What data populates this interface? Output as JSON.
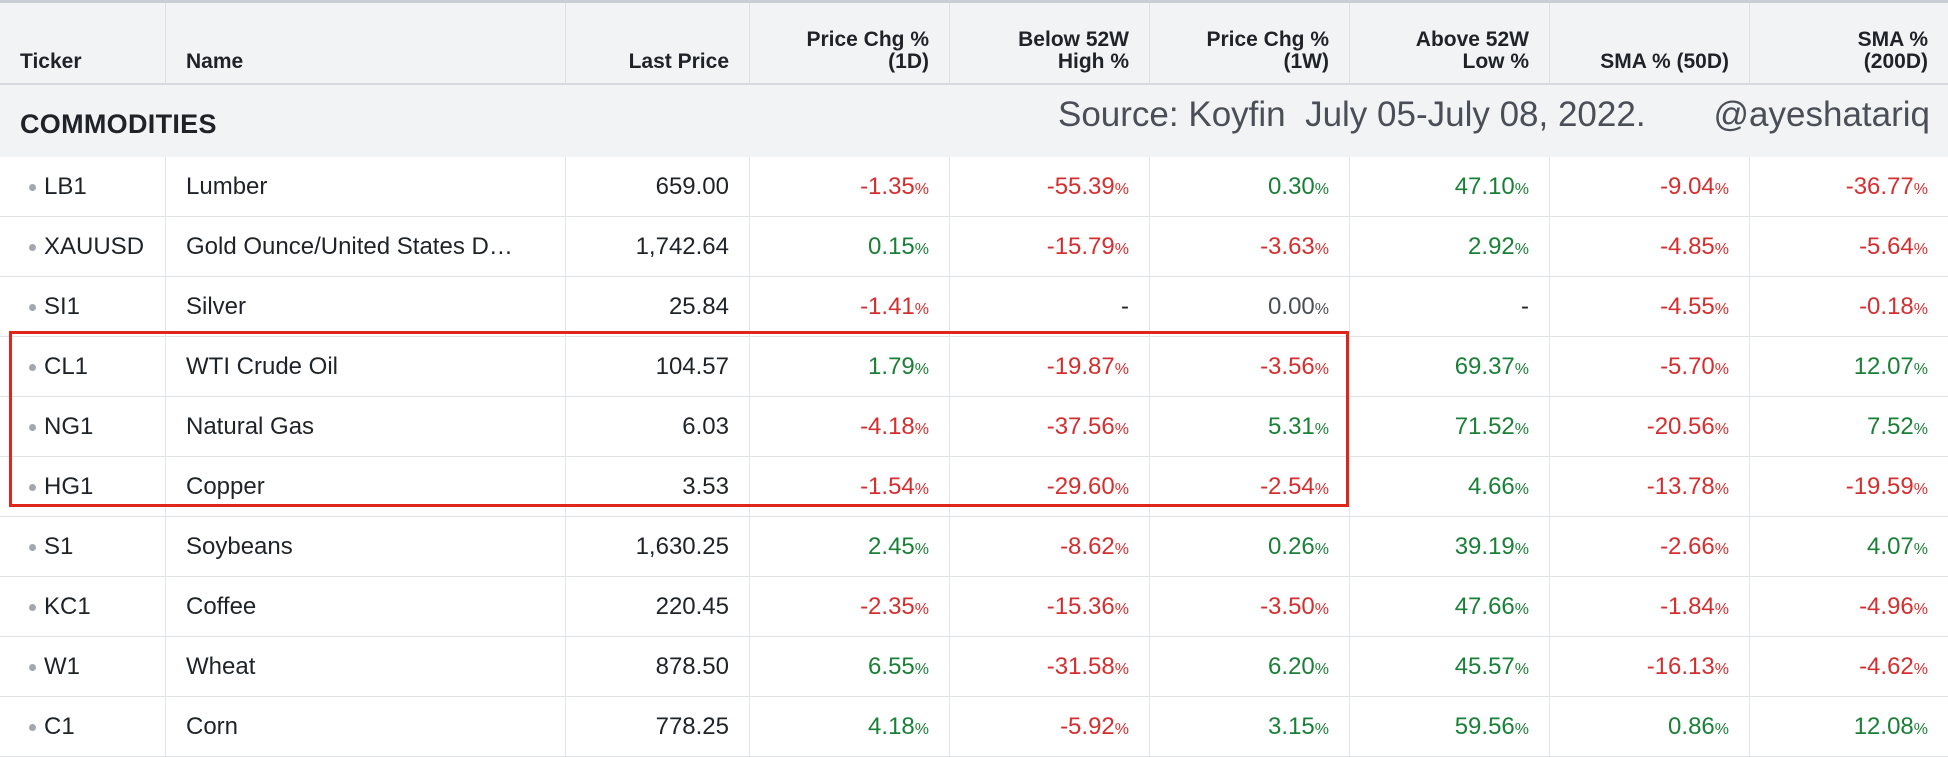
{
  "columns": [
    {
      "l1": "",
      "l2": "Ticker"
    },
    {
      "l1": "",
      "l2": "Name"
    },
    {
      "l1": "",
      "l2": "Last Price"
    },
    {
      "l1": "Price Chg %",
      "l2": "(1D)"
    },
    {
      "l1": "Below 52W",
      "l2": "High %"
    },
    {
      "l1": "Price Chg %",
      "l2": "(1W)"
    },
    {
      "l1": "Above 52W",
      "l2": "Low %"
    },
    {
      "l1": "",
      "l2": "SMA % (50D)"
    },
    {
      "l1": "SMA %",
      "l2": "(200D)"
    }
  ],
  "section": {
    "title": "COMMODITIES",
    "source_note": "Source: Koyfin  July 05-July 08, 2022.",
    "handle": "@ayeshatariq"
  },
  "colors": {
    "positive": "#1a7f37",
    "negative": "#d32f2f",
    "highlight_border": "#e0251b",
    "header_bg": "#f2f3f5"
  },
  "highlighted_tickers": [
    "CL1",
    "NG1",
    "HG1"
  ],
  "rows": [
    {
      "ticker": "LB1",
      "name": "Lumber",
      "price": "659.00",
      "values": [
        "-1.35",
        "-55.39",
        "0.30",
        "47.10",
        "-9.04",
        "-36.77"
      ]
    },
    {
      "ticker": "XAUUSD",
      "name": "Gold Ounce/United States D…",
      "price": "1,742.64",
      "values": [
        "0.15",
        "-15.79",
        "-3.63",
        "2.92",
        "-4.85",
        "-5.64"
      ]
    },
    {
      "ticker": "SI1",
      "name": "Silver",
      "price": "25.84",
      "values": [
        "-1.41",
        "-",
        "0.00",
        "-",
        "-4.55",
        "-0.18"
      ]
    },
    {
      "ticker": "CL1",
      "name": "WTI Crude Oil",
      "price": "104.57",
      "values": [
        "1.79",
        "-19.87",
        "-3.56",
        "69.37",
        "-5.70",
        "12.07"
      ]
    },
    {
      "ticker": "NG1",
      "name": "Natural Gas",
      "price": "6.03",
      "values": [
        "-4.18",
        "-37.56",
        "5.31",
        "71.52",
        "-20.56",
        "7.52"
      ]
    },
    {
      "ticker": "HG1",
      "name": "Copper",
      "price": "3.53",
      "values": [
        "-1.54",
        "-29.60",
        "-2.54",
        "4.66",
        "-13.78",
        "-19.59"
      ]
    },
    {
      "ticker": "S1",
      "name": "Soybeans",
      "price": "1,630.25",
      "values": [
        "2.45",
        "-8.62",
        "0.26",
        "39.19",
        "-2.66",
        "4.07"
      ]
    },
    {
      "ticker": "KC1",
      "name": "Coffee",
      "price": "220.45",
      "values": [
        "-2.35",
        "-15.36",
        "-3.50",
        "47.66",
        "-1.84",
        "-4.96"
      ]
    },
    {
      "ticker": "W1",
      "name": "Wheat",
      "price": "878.50",
      "values": [
        "6.55",
        "-31.58",
        "6.20",
        "45.57",
        "-16.13",
        "-4.62"
      ]
    },
    {
      "ticker": "C1",
      "name": "Corn",
      "price": "778.25",
      "values": [
        "4.18",
        "-5.92",
        "3.15",
        "59.56",
        "0.86",
        "12.08"
      ]
    }
  ]
}
